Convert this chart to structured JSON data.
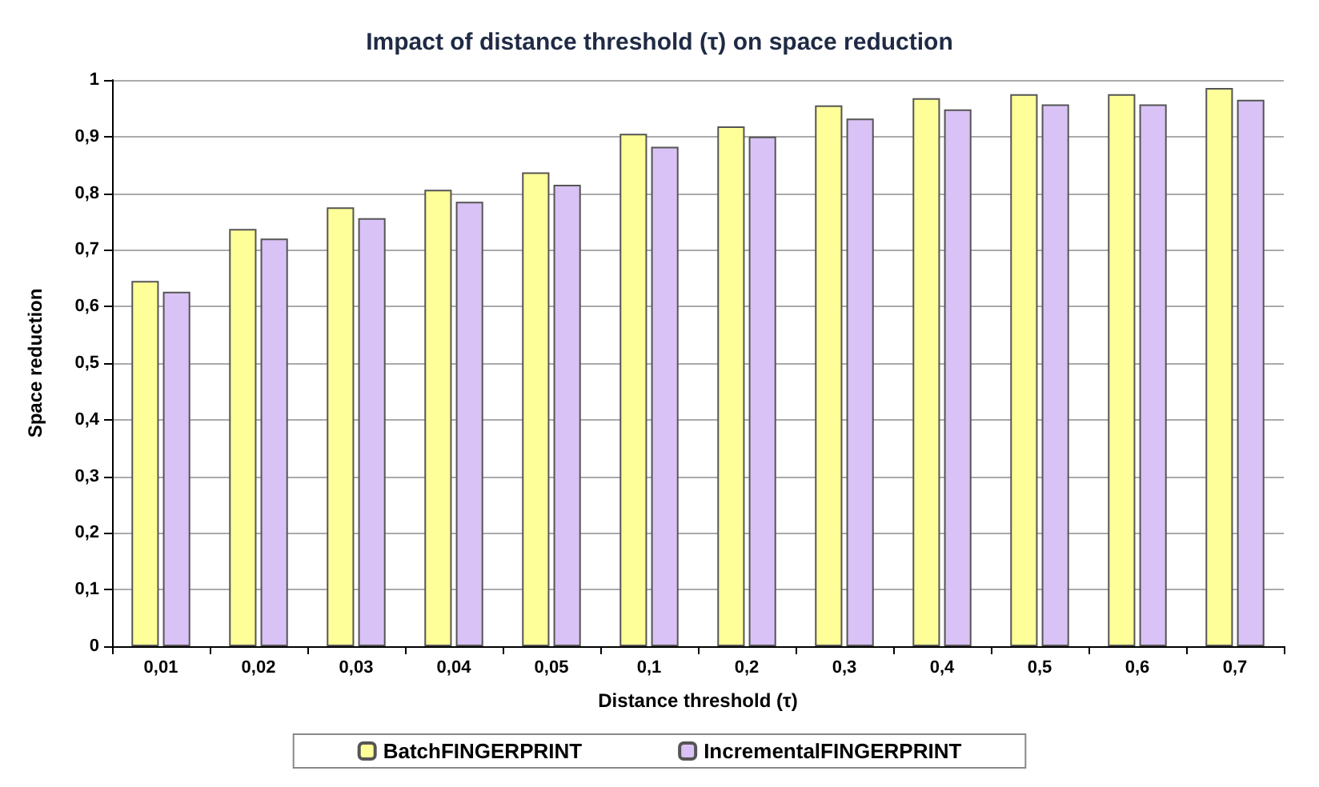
{
  "chart_data": {
    "type": "bar",
    "title": "Impact of distance threshold (τ) on space reduction",
    "xlabel": "Distance threshold (τ)",
    "ylabel": "Space reduction",
    "categories": [
      "0,01",
      "0,02",
      "0,03",
      "0,04",
      "0,05",
      "0,1",
      "0,2",
      "0,3",
      "0,4",
      "0,5",
      "0,6",
      "0,7"
    ],
    "series": [
      {
        "name": "BatchFINGERPRINT",
        "color": "#ffff99",
        "values": [
          0.645,
          0.737,
          0.775,
          0.806,
          0.837,
          0.905,
          0.918,
          0.955,
          0.968,
          0.975,
          0.975,
          0.986
        ]
      },
      {
        "name": "IncrementalFINGERPRINT",
        "color": "#d9c2f5",
        "values": [
          0.626,
          0.72,
          0.756,
          0.785,
          0.815,
          0.882,
          0.9,
          0.932,
          0.948,
          0.957,
          0.957,
          0.965
        ]
      }
    ],
    "ylim": [
      0,
      1
    ],
    "yticks": [
      0,
      {
        "value": 0.1,
        "label": "0,1"
      },
      {
        "value": 0.2,
        "label": "0,2"
      },
      {
        "value": 0.3,
        "label": "0,3"
      },
      {
        "value": 0.4,
        "label": "0,4"
      },
      {
        "value": 0.5,
        "label": "0,5"
      },
      {
        "value": 0.6,
        "label": "0,6"
      },
      {
        "value": 0.7,
        "label": "0,7"
      },
      {
        "value": 0.8,
        "label": "0,8"
      },
      {
        "value": 0.9,
        "label": "0,9"
      },
      1
    ],
    "grid": "y",
    "legend": "bottom"
  }
}
